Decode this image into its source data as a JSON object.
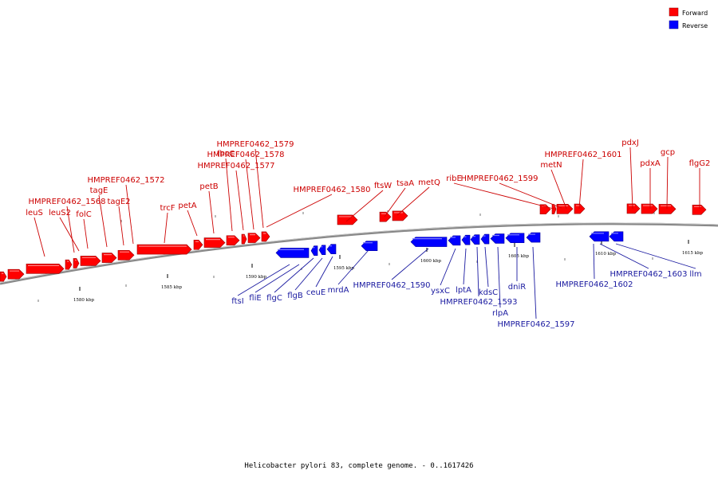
{
  "caption": "Helicobacter pylori 83, complete genome. - 0..1617426",
  "colors": {
    "forward": "#ff0000",
    "reverse": "#0000ff",
    "label_forward": "#cc0000",
    "label_reverse": "#1a1aa0",
    "backbone": "#888888"
  },
  "legend": [
    {
      "label": "Forward",
      "color": "#ff0000"
    },
    {
      "label": "Reverse",
      "color": "#0000ff"
    }
  ],
  "ticks": [
    "1580 kbp",
    "1585 kbp",
    "1590 kbp",
    "1595 kbp",
    "1600 kbp",
    "1605 kbp",
    "1610 kbp",
    "1615 kbp"
  ],
  "forward_genes": [
    "leuS",
    "HMPREF0462_1568",
    "leuS2",
    "folC",
    "tagE",
    "HMPREF0462_1572",
    "tagE2",
    "trcF",
    "petA",
    "petB",
    "fbcC",
    "HMPREF0462_1577",
    "HMPREF0462_1578",
    "HMPREF0462_1579",
    "HMPREF0462_1580",
    "ftsW",
    "tsaA",
    "metQ",
    "ribE",
    "HMPREF0462_1599",
    "metN",
    "HMPREF0462_1601",
    "pdxJ",
    "pdxA",
    "gcp",
    "flgG2"
  ],
  "reverse_genes": [
    "ftsI",
    "fliE",
    "flgC",
    "flgB",
    "ceuE",
    "mrdA",
    "HMPREF0462_1590",
    "ysxC",
    "lptA",
    "kdsC",
    "HMPREF0462_1593",
    "rlpA",
    "dniR",
    "HMPREF0462_1597",
    "HMPREF0462_1602",
    "HMPREF0462_1603",
    "llm"
  ]
}
